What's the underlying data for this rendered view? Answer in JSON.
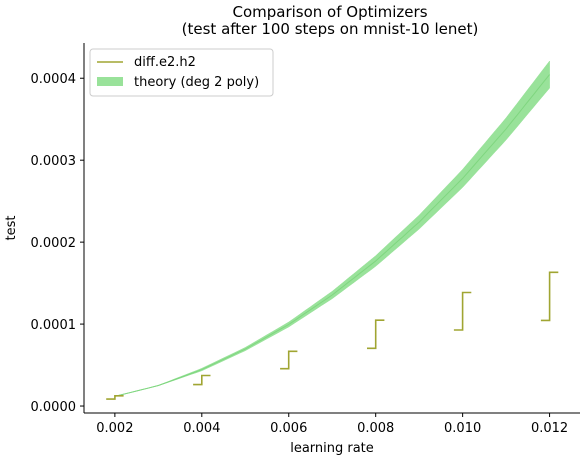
{
  "chart_data": {
    "type": "line",
    "title": "Comparison of Optimizers",
    "subtitle": "(test after 100 steps on mnist-10 lenet)",
    "xlabel": "learning rate",
    "ylabel": "test",
    "xlim": [
      0.00129,
      0.0127
    ],
    "ylim": [
      -8.5e-06,
      0.000443
    ],
    "x_ticks": [
      0.002,
      0.004,
      0.006,
      0.008,
      0.01,
      0.012
    ],
    "x_tick_labels": [
      "0.002",
      "0.004",
      "0.006",
      "0.008",
      "0.010",
      "0.012"
    ],
    "y_ticks": [
      0.0,
      0.0001,
      0.0002,
      0.0003,
      0.0004
    ],
    "y_tick_labels": [
      "0.0000",
      "0.0001",
      "0.0002",
      "0.0003",
      "0.0004"
    ],
    "legend_position": "top-left",
    "legend": [
      {
        "label": "diff.e2.h2",
        "kind": "line",
        "color": "#a0a532"
      },
      {
        "label": "theory (deg 2 poly)",
        "kind": "band",
        "color": "#99e29a"
      }
    ],
    "series": [
      {
        "name": "diff.e2.h2",
        "color": "#a0a532",
        "style": "steps",
        "segments": [
          {
            "x": [
              0.0018,
              0.002,
              0.002,
              0.0022
            ],
            "y": [
              8.5e-06,
              8.5e-06,
              1.25e-05,
              1.25e-05
            ]
          },
          {
            "x": [
              0.0038,
              0.004,
              0.004,
              0.0042
            ],
            "y": [
              2.62e-05,
              2.62e-05,
              3.72e-05,
              3.72e-05
            ]
          },
          {
            "x": [
              0.0058,
              0.006,
              0.006,
              0.0062
            ],
            "y": [
              4.55e-05,
              4.55e-05,
              6.68e-05,
              6.68e-05
            ]
          },
          {
            "x": [
              0.0078,
              0.008,
              0.008,
              0.0082
            ],
            "y": [
              7.05e-05,
              7.05e-05,
              0.0001047,
              0.0001047
            ]
          },
          {
            "x": [
              0.0098,
              0.01,
              0.01,
              0.0102
            ],
            "y": [
              9.28e-05,
              9.28e-05,
              0.0001385,
              0.0001385
            ]
          },
          {
            "x": [
              0.0118,
              0.012,
              0.012,
              0.0122
            ],
            "y": [
              0.0001045,
              0.0001045,
              0.0001632,
              0.0001632
            ]
          }
        ]
      },
      {
        "name": "theory (deg 2 poly)",
        "color": "#99e29a",
        "line_color": "#7fd67f",
        "style": "band",
        "x": [
          0.002,
          0.003,
          0.004,
          0.005,
          0.006,
          0.007,
          0.008,
          0.009,
          0.01,
          0.011,
          0.012
        ],
        "y": [
          1.18e-05,
          2.5e-05,
          4.45e-05,
          6.95e-05,
          9.95e-05,
          0.0001355,
          0.000177,
          0.0002245,
          0.0002778,
          0.0003382,
          0.0004045
        ],
        "band_half_width": [
          3e-07,
          3e-07,
          1.5e-06,
          2e-06,
          3e-06,
          4.5e-06,
          6.5e-06,
          8.5e-06,
          1.1e-05,
          1.35e-05,
          1.65e-05
        ]
      }
    ]
  }
}
